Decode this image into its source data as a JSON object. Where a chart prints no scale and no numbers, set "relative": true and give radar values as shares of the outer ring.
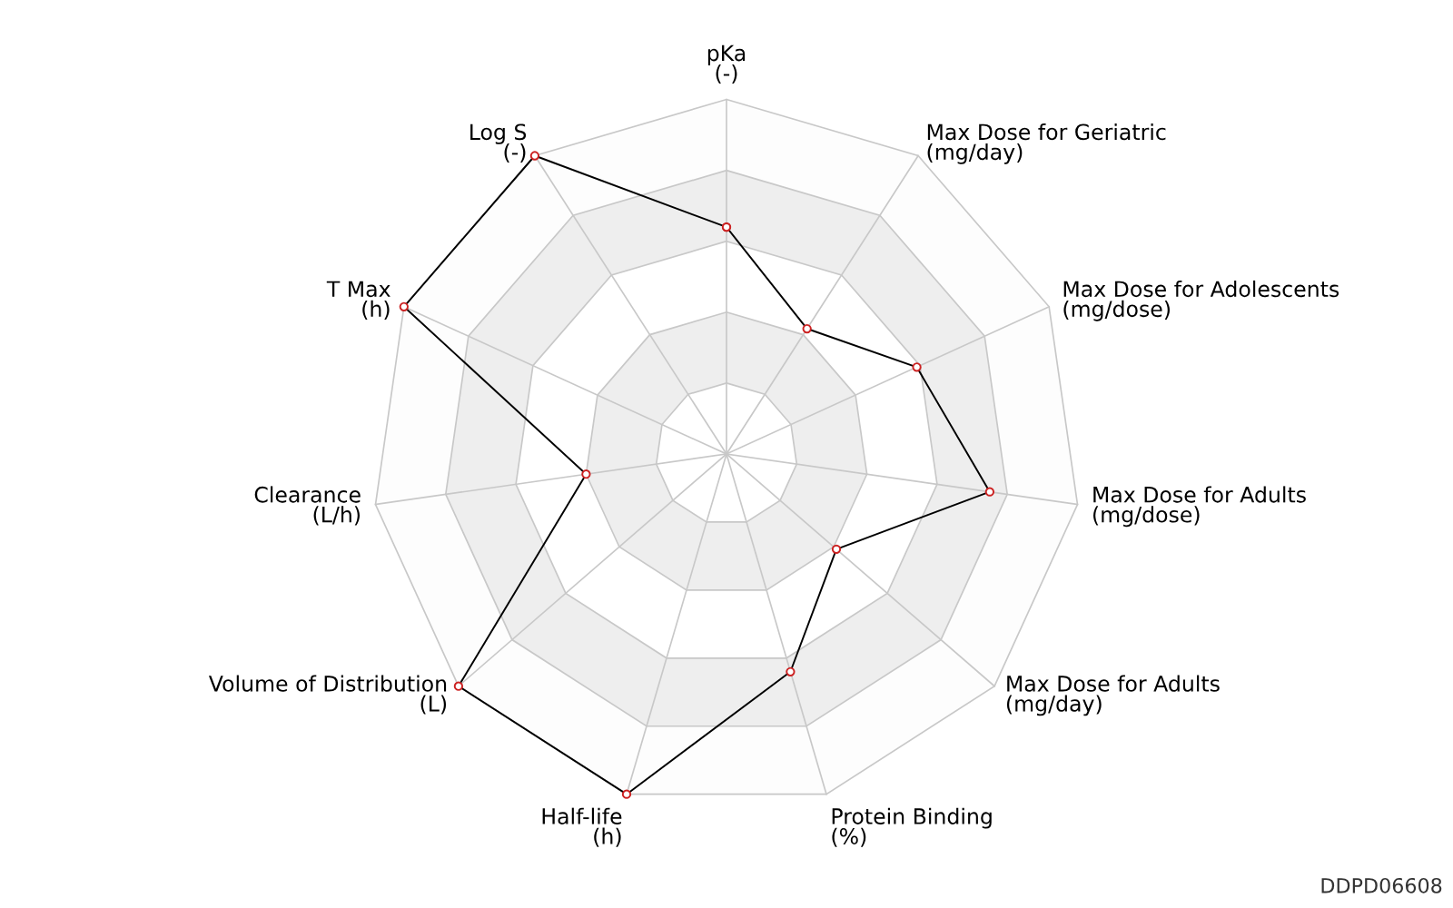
{
  "chart_data": {
    "type": "radar",
    "relative": true,
    "categories": [
      "pKa\n(-)",
      "Max Dose for Geriatric\n(mg/day)",
      "Max Dose for Adolescents\n(mg/dose)",
      "Max Dose for Adults\n(mg/dose)",
      "Max Dose for Adults\n(mg/day)",
      "Protein Binding\n(%)",
      "Half-life\n(h)",
      "Volume of Distribution\n(L)",
      "Clearance\n(L/h)",
      "T Max\n(h)",
      "Log S\n(-)"
    ],
    "series": [
      {
        "color": "#000000",
        "values": [
          0.64,
          0.42,
          0.59,
          0.75,
          0.41,
          0.64,
          1.0,
          1.0,
          0.4,
          1.0,
          1.0
        ]
      }
    ],
    "marker": "circle",
    "grid": true,
    "annotations": [
      "DDPD06608"
    ]
  }
}
